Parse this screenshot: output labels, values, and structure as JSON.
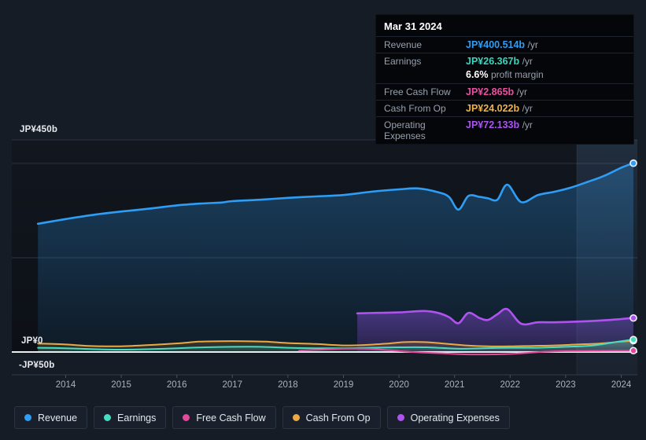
{
  "tooltip": {
    "date": "Mar 31 2024",
    "rows": [
      {
        "label": "Revenue",
        "value": "JP¥400.514b",
        "suffix": "/yr",
        "color": "#2f9df5"
      },
      {
        "label": "Earnings",
        "value": "JP¥26.367b",
        "suffix": "/yr",
        "color": "#3bd6bd"
      },
      {
        "label": "Free Cash Flow",
        "value": "JP¥2.865b",
        "suffix": "/yr",
        "color": "#ed4fa0"
      },
      {
        "label": "Cash From Op",
        "value": "JP¥24.022b",
        "suffix": "/yr",
        "color": "#edb24a"
      },
      {
        "label": "Operating Expenses",
        "value": "JP¥72.133b",
        "suffix": "/yr",
        "color": "#ad52f4"
      }
    ],
    "profit_margin": {
      "pct": "6.6%",
      "text": "profit margin"
    }
  },
  "axis": {
    "y_top": "JP¥450b",
    "y_zero": "JP¥0",
    "y_bottom": "-JP¥50b",
    "years": [
      "2014",
      "2015",
      "2016",
      "2017",
      "2018",
      "2019",
      "2020",
      "2021",
      "2022",
      "2023",
      "2024"
    ]
  },
  "legend": {
    "items": [
      {
        "label": "Revenue",
        "color": "#2e9df5"
      },
      {
        "label": "Earnings",
        "color": "#45dcc0"
      },
      {
        "label": "Free Cash Flow",
        "color": "#e2499a"
      },
      {
        "label": "Cash From Op",
        "color": "#e9a944"
      },
      {
        "label": "Operating Expenses",
        "color": "#b052f0"
      }
    ]
  },
  "chart_data": {
    "type": "area",
    "unit": "JP¥ billions per year",
    "x_range": [
      2013.5,
      2024.25
    ],
    "ylim": [
      -50,
      450
    ],
    "y_gridline_values": [
      450,
      400,
      200
    ],
    "zero_line": 0,
    "highlight_span": [
      2023.2,
      2024.3
    ],
    "legend_position": "bottom",
    "series": [
      {
        "name": "Revenue",
        "color": "#2e9df5",
        "width": 2.6,
        "area": true,
        "fill": [
          "rgba(46,157,245,0.30)",
          "rgba(46,157,245,0.07)"
        ],
        "points": [
          [
            2013.5,
            272
          ],
          [
            2013.75,
            277
          ],
          [
            2014,
            282
          ],
          [
            2014.5,
            291
          ],
          [
            2015,
            298
          ],
          [
            2015.5,
            304
          ],
          [
            2016,
            311
          ],
          [
            2016.45,
            315
          ],
          [
            2016.8,
            317
          ],
          [
            2017,
            320
          ],
          [
            2017.5,
            323
          ],
          [
            2018,
            327
          ],
          [
            2018.5,
            330
          ],
          [
            2019,
            333
          ],
          [
            2019.5,
            340
          ],
          [
            2020,
            345
          ],
          [
            2020.35,
            347
          ],
          [
            2020.7,
            339
          ],
          [
            2020.9,
            329
          ],
          [
            2021.07,
            302
          ],
          [
            2021.25,
            331
          ],
          [
            2021.45,
            329
          ],
          [
            2021.6,
            326
          ],
          [
            2021.77,
            323
          ],
          [
            2021.95,
            355
          ],
          [
            2022.2,
            318
          ],
          [
            2022.5,
            333
          ],
          [
            2022.8,
            340
          ],
          [
            2023.1,
            349
          ],
          [
            2023.4,
            361
          ],
          [
            2023.7,
            374
          ],
          [
            2024,
            391
          ],
          [
            2024.22,
            400.5
          ]
        ]
      },
      {
        "name": "Operating Expenses",
        "color": "#b052f0",
        "width": 2.6,
        "area": true,
        "fill": [
          "rgba(150,80,235,0.42)",
          "rgba(150,80,235,0.16)"
        ],
        "points": [
          [
            2019.25,
            82
          ],
          [
            2019.6,
            83
          ],
          [
            2020,
            84
          ],
          [
            2020.45,
            87
          ],
          [
            2020.7,
            83
          ],
          [
            2020.9,
            74
          ],
          [
            2021.07,
            61
          ],
          [
            2021.25,
            83
          ],
          [
            2021.45,
            72
          ],
          [
            2021.6,
            68
          ],
          [
            2021.77,
            80
          ],
          [
            2021.95,
            91
          ],
          [
            2022.2,
            60
          ],
          [
            2022.5,
            63
          ],
          [
            2022.8,
            63
          ],
          [
            2023.1,
            64
          ],
          [
            2023.5,
            66
          ],
          [
            2023.8,
            68
          ],
          [
            2024,
            70
          ],
          [
            2024.22,
            72.1
          ]
        ]
      },
      {
        "name": "Cash From Op",
        "color": "#e9a944",
        "width": 2,
        "area": true,
        "fill": [
          "rgba(233,169,68,0.20)",
          "rgba(233,169,68,0.08)"
        ],
        "points": [
          [
            2013.5,
            18
          ],
          [
            2014,
            16
          ],
          [
            2014.4,
            13
          ],
          [
            2014.8,
            12
          ],
          [
            2015.2,
            13
          ],
          [
            2015.7,
            16
          ],
          [
            2016.1,
            19
          ],
          [
            2016.4,
            22
          ],
          [
            2016.8,
            23
          ],
          [
            2017.2,
            23
          ],
          [
            2017.6,
            22
          ],
          [
            2018,
            19
          ],
          [
            2018.5,
            17
          ],
          [
            2019,
            14
          ],
          [
            2019.4,
            15
          ],
          [
            2019.8,
            18
          ],
          [
            2020.1,
            21
          ],
          [
            2020.45,
            21
          ],
          [
            2020.8,
            18
          ],
          [
            2021.2,
            14
          ],
          [
            2021.6,
            12
          ],
          [
            2022,
            12
          ],
          [
            2022.4,
            13
          ],
          [
            2022.8,
            14
          ],
          [
            2023.2,
            16
          ],
          [
            2023.6,
            18
          ],
          [
            2024,
            22
          ],
          [
            2024.22,
            24
          ]
        ]
      },
      {
        "name": "Earnings",
        "color": "#45dcc0",
        "width": 2,
        "area": true,
        "fill": [
          "rgba(69,220,192,0.35)",
          "rgba(69,220,192,0.12)"
        ],
        "points": [
          [
            2013.5,
            9
          ],
          [
            2014,
            8
          ],
          [
            2014.5,
            6
          ],
          [
            2015,
            5
          ],
          [
            2015.5,
            6
          ],
          [
            2016,
            8
          ],
          [
            2016.5,
            10
          ],
          [
            2017,
            11
          ],
          [
            2017.5,
            11
          ],
          [
            2018,
            9
          ],
          [
            2018.5,
            8
          ],
          [
            2019,
            8
          ],
          [
            2019.5,
            9
          ],
          [
            2020,
            10
          ],
          [
            2020.5,
            10
          ],
          [
            2021.07,
            7
          ],
          [
            2021.5,
            8
          ],
          [
            2022,
            9
          ],
          [
            2022.5,
            9
          ],
          [
            2023,
            11
          ],
          [
            2023.5,
            14
          ],
          [
            2024,
            23
          ],
          [
            2024.22,
            26.4
          ]
        ]
      },
      {
        "name": "Free Cash Flow",
        "color": "#e2499a",
        "width": 2,
        "area": false,
        "fill": null,
        "points": [
          [
            2018.2,
            3
          ],
          [
            2018.6,
            5
          ],
          [
            2019,
            7
          ],
          [
            2019.4,
            7
          ],
          [
            2019.8,
            4
          ],
          [
            2020.1,
            1
          ],
          [
            2020.4,
            -1
          ],
          [
            2020.8,
            -3
          ],
          [
            2021.2,
            -5
          ],
          [
            2021.7,
            -5
          ],
          [
            2022.1,
            -3.5
          ],
          [
            2022.55,
            0
          ],
          [
            2023,
            2
          ],
          [
            2023.5,
            2.5
          ],
          [
            2024,
            2.8
          ],
          [
            2024.22,
            2.9
          ]
        ]
      }
    ]
  }
}
